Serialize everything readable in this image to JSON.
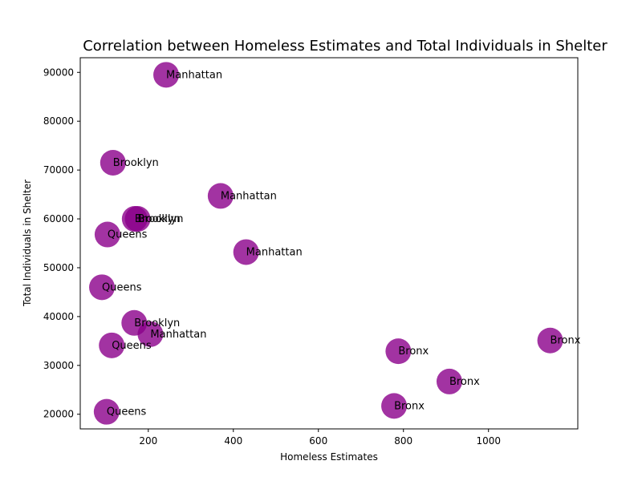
{
  "chart_data": {
    "type": "scatter",
    "title": "Correlation between Homeless Estimates and Total Individuals in Shelter",
    "xlabel": "Homeless Estimates",
    "ylabel": "Total Individuals in Shelter",
    "xlim": [
      40,
      1210
    ],
    "ylim": [
      17000,
      93000
    ],
    "xticks": [
      200,
      400,
      600,
      800,
      1000
    ],
    "yticks": [
      20000,
      30000,
      40000,
      50000,
      60000,
      70000,
      80000,
      90000
    ],
    "grid": false,
    "marker_color": "#8b008b",
    "points": [
      {
        "x": 242,
        "y": 89500,
        "label": "Manhattan"
      },
      {
        "x": 117,
        "y": 71500,
        "label": "Brooklyn"
      },
      {
        "x": 370,
        "y": 64700,
        "label": "Manhattan"
      },
      {
        "x": 168,
        "y": 60000,
        "label": "Brooklyn"
      },
      {
        "x": 175,
        "y": 60000,
        "label": "Brooklyn"
      },
      {
        "x": 104,
        "y": 56800,
        "label": "Queens"
      },
      {
        "x": 430,
        "y": 53200,
        "label": "Manhattan"
      },
      {
        "x": 91,
        "y": 46000,
        "label": "Queens"
      },
      {
        "x": 167,
        "y": 38700,
        "label": "Brooklyn"
      },
      {
        "x": 205,
        "y": 36400,
        "label": "Manhattan"
      },
      {
        "x": 114,
        "y": 34100,
        "label": "Queens"
      },
      {
        "x": 1145,
        "y": 35100,
        "label": "Bronx"
      },
      {
        "x": 788,
        "y": 32900,
        "label": "Bronx"
      },
      {
        "x": 908,
        "y": 26700,
        "label": "Bronx"
      },
      {
        "x": 778,
        "y": 21700,
        "label": "Bronx"
      },
      {
        "x": 102,
        "y": 20500,
        "label": "Queens"
      }
    ]
  }
}
